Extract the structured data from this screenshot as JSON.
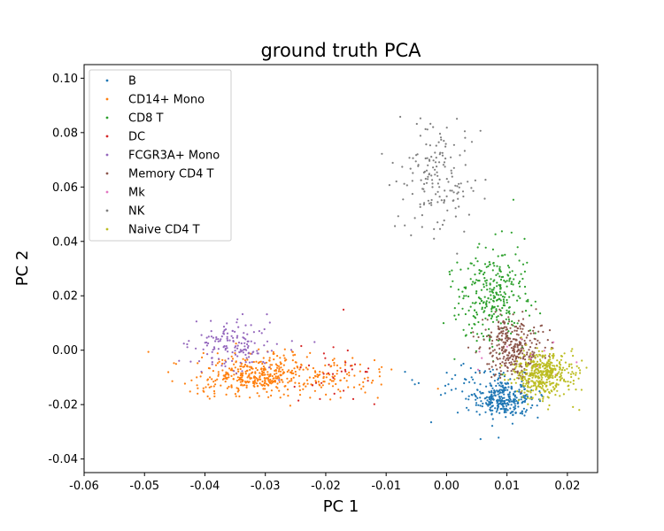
{
  "chart_data": {
    "type": "scatter",
    "title": "ground truth PCA",
    "xlabel": "PC 1",
    "ylabel": "PC 2",
    "xlim": [
      -0.06,
      0.025
    ],
    "ylim": [
      -0.045,
      0.105
    ],
    "xticks": [
      "-0.06",
      "-0.05",
      "-0.04",
      "-0.03",
      "-0.02",
      "-0.01",
      "0.00",
      "0.01",
      "0.02"
    ],
    "yticks": [
      "-0.04",
      "-0.02",
      "0.00",
      "0.02",
      "0.04",
      "0.06",
      "0.08",
      "0.10"
    ],
    "grid": false,
    "legend": "upper left",
    "series": [
      {
        "name": "B",
        "color": "#1f77b4",
        "count": 340,
        "clusters": [
          {
            "x": 0.0095,
            "y": -0.018,
            "sx": 0.0025,
            "sy": 0.0035,
            "w": 0.9
          },
          {
            "x": 0.003,
            "y": -0.012,
            "sx": 0.004,
            "sy": 0.004,
            "w": 0.1
          }
        ]
      },
      {
        "name": "CD14+ Mono",
        "color": "#ff7f0e",
        "count": 480,
        "clusters": [
          {
            "x": -0.032,
            "y": -0.009,
            "sx": 0.0045,
            "sy": 0.0038,
            "w": 0.75
          },
          {
            "x": -0.02,
            "y": -0.01,
            "sx": 0.006,
            "sy": 0.004,
            "w": 0.25
          }
        ]
      },
      {
        "name": "CD8 T",
        "color": "#2ca02c",
        "count": 300,
        "clusters": [
          {
            "x": 0.0075,
            "y": 0.02,
            "sx": 0.003,
            "sy": 0.009,
            "w": 1.0
          }
        ]
      },
      {
        "name": "DC",
        "color": "#d62728",
        "count": 35,
        "clusters": [
          {
            "x": -0.019,
            "y": -0.008,
            "sx": 0.004,
            "sy": 0.006,
            "w": 1.0
          }
        ]
      },
      {
        "name": "FCGR3A+ Mono",
        "color": "#9467bd",
        "count": 150,
        "clusters": [
          {
            "x": -0.035,
            "y": 0.002,
            "sx": 0.0035,
            "sy": 0.0045,
            "w": 1.0
          }
        ]
      },
      {
        "name": "Memory CD4 T",
        "color": "#8c564b",
        "count": 320,
        "clusters": [
          {
            "x": 0.011,
            "y": 0.001,
            "sx": 0.0025,
            "sy": 0.0055,
            "w": 1.0
          }
        ]
      },
      {
        "name": "Mk",
        "color": "#e377c2",
        "count": 12,
        "clusters": [
          {
            "x": 0.012,
            "y": -0.002,
            "sx": 0.004,
            "sy": 0.004,
            "w": 1.0
          }
        ]
      },
      {
        "name": "NK",
        "color": "#7f7f7f",
        "count": 160,
        "clusters": [
          {
            "x": -0.002,
            "y": 0.065,
            "sx": 0.0032,
            "sy": 0.011,
            "w": 1.0
          }
        ]
      },
      {
        "name": "Naive CD4 T",
        "color": "#bcbd22",
        "count": 420,
        "clusters": [
          {
            "x": 0.016,
            "y": -0.009,
            "sx": 0.0025,
            "sy": 0.0042,
            "w": 1.0
          }
        ]
      }
    ]
  }
}
